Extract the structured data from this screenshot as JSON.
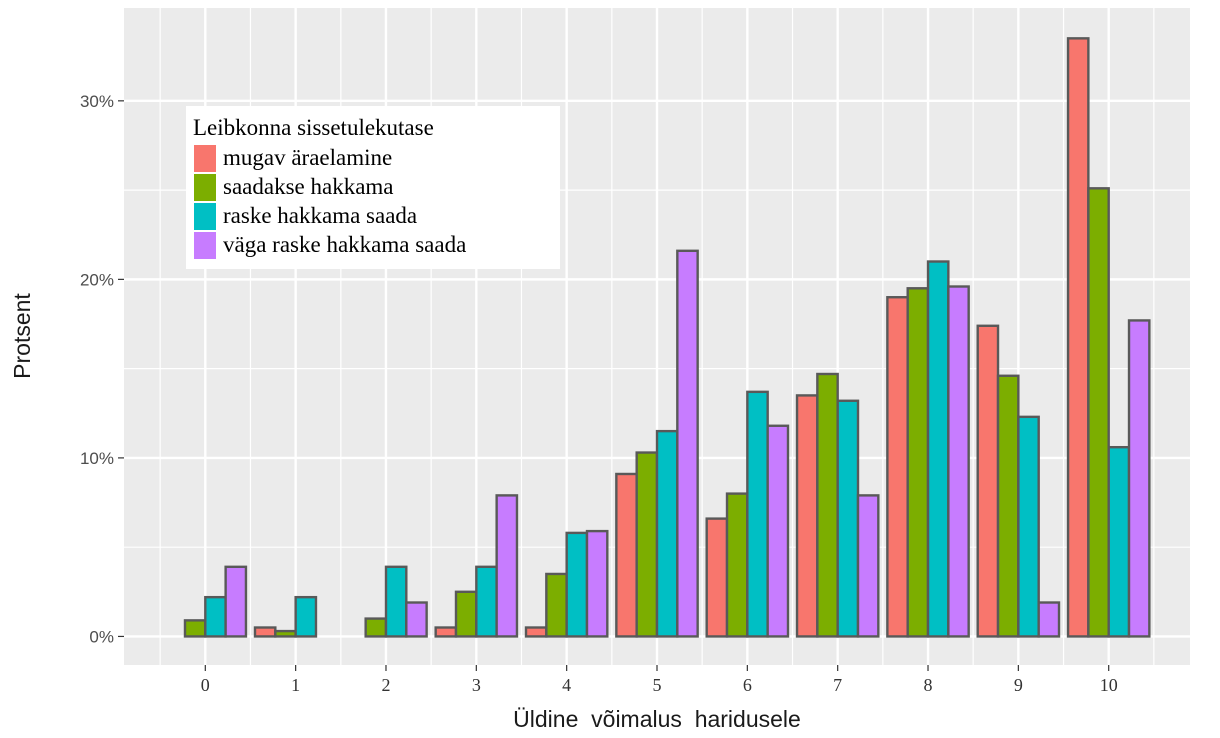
{
  "chart_data": {
    "type": "bar",
    "xlabel": "Üldine  võimalus  haridusele",
    "ylabel": "Protsent",
    "categories": [
      "0",
      "1",
      "2",
      "3",
      "4",
      "5",
      "6",
      "7",
      "8",
      "9",
      "10"
    ],
    "y_ticks": [
      {
        "value": 0,
        "label": "0%"
      },
      {
        "value": 10,
        "label": "10%"
      },
      {
        "value": 20,
        "label": "20%"
      },
      {
        "value": 30,
        "label": "30%"
      }
    ],
    "ylim": [
      -1.6,
      35.2
    ],
    "grid": true,
    "legend": {
      "title": "Leibkonna sissetulekutase",
      "position": "top-left inside"
    },
    "series": [
      {
        "name": "mugav äraelamine",
        "color": "#F8766D",
        "values": [
          0,
          0.5,
          0,
          0.5,
          0.5,
          9.1,
          6.6,
          13.5,
          19.0,
          17.4,
          33.5
        ]
      },
      {
        "name": "saadakse hakkama",
        "color": "#7CAE00",
        "values": [
          0.9,
          0.3,
          1.0,
          2.5,
          3.5,
          10.3,
          8.0,
          14.7,
          19.5,
          14.6,
          25.1
        ]
      },
      {
        "name": "raske hakkama saada",
        "color": "#00BFC4",
        "values": [
          2.2,
          2.2,
          3.9,
          3.9,
          5.8,
          11.5,
          13.7,
          13.2,
          21.0,
          12.3,
          10.6
        ]
      },
      {
        "name": "väga raske hakkama saada",
        "color": "#C77CFF",
        "values": [
          3.9,
          0,
          1.9,
          7.9,
          5.9,
          21.6,
          11.8,
          7.9,
          19.6,
          1.9,
          17.7
        ]
      }
    ]
  }
}
